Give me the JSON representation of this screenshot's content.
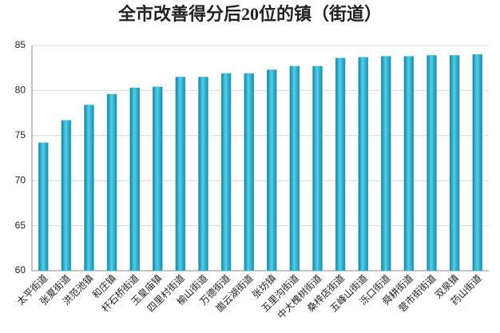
{
  "chart_data": {
    "type": "bar",
    "title": "全市改善得分后20位的镇（街道）",
    "categories": [
      "太平街道",
      "张夏街道",
      "洪范池镇",
      "和庄镇",
      "杆石桥街道",
      "玉皇庙镇",
      "四里村街道",
      "榆山街道",
      "万德街道",
      "崮云湖街道",
      "张坊镇",
      "五里沟街道",
      "中大槐树街道",
      "桑梓店街道",
      "五峰山街道",
      "泺口街道",
      "舜耕街道",
      "营市街街道",
      "双泉镇",
      "药山街道"
    ],
    "values": [
      74.2,
      76.7,
      78.4,
      79.6,
      80.3,
      80.4,
      81.5,
      81.5,
      81.9,
      81.9,
      82.3,
      82.7,
      82.7,
      83.6,
      83.7,
      83.8,
      83.8,
      83.9,
      83.9,
      84.0
    ],
    "color": "#31b6d4",
    "ylim": [
      60,
      85
    ],
    "yticks": [
      60,
      65,
      70,
      75,
      80,
      85
    ],
    "grid": true
  }
}
